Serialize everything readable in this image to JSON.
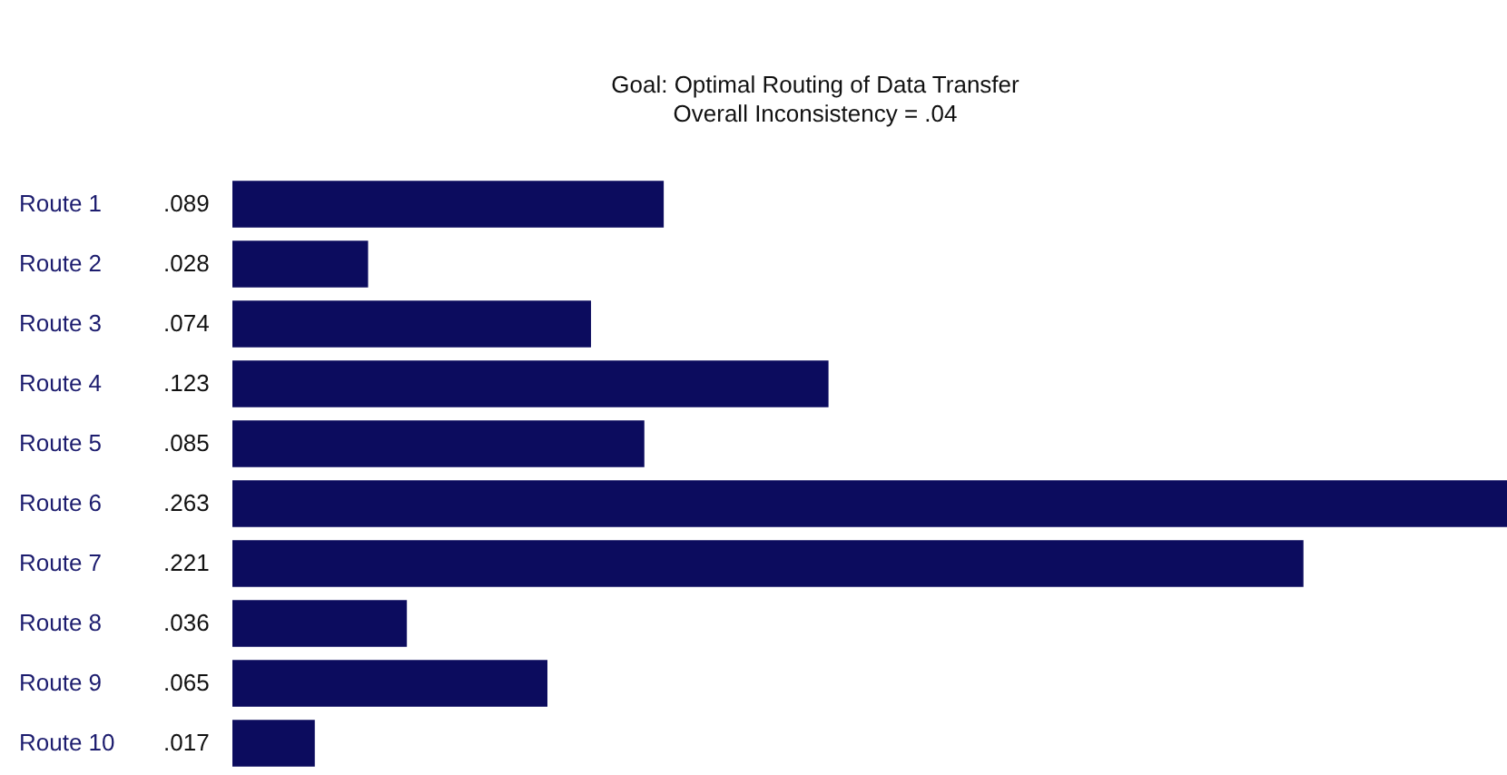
{
  "chart_data": {
    "type": "bar",
    "orientation": "horizontal",
    "title": "Goal: Optimal Routing of Data Transfer",
    "subtitle": "Overall Inconsistency = .04",
    "categories": [
      "Route 1",
      "Route 2",
      "Route 3",
      "Route 4",
      "Route 5",
      "Route 6",
      "Route 7",
      "Route 8",
      "Route 9",
      "Route 10"
    ],
    "values": [
      0.089,
      0.028,
      0.074,
      0.123,
      0.085,
      0.263,
      0.221,
      0.036,
      0.065,
      0.017
    ],
    "value_labels": [
      ".089",
      ".028",
      ".074",
      ".123",
      ".085",
      ".263",
      ".221",
      ".036",
      ".065",
      ".017"
    ],
    "color": "#0c0c5e",
    "xlim": [
      0,
      0.263
    ],
    "tick_labels": "y",
    "grid": false
  }
}
